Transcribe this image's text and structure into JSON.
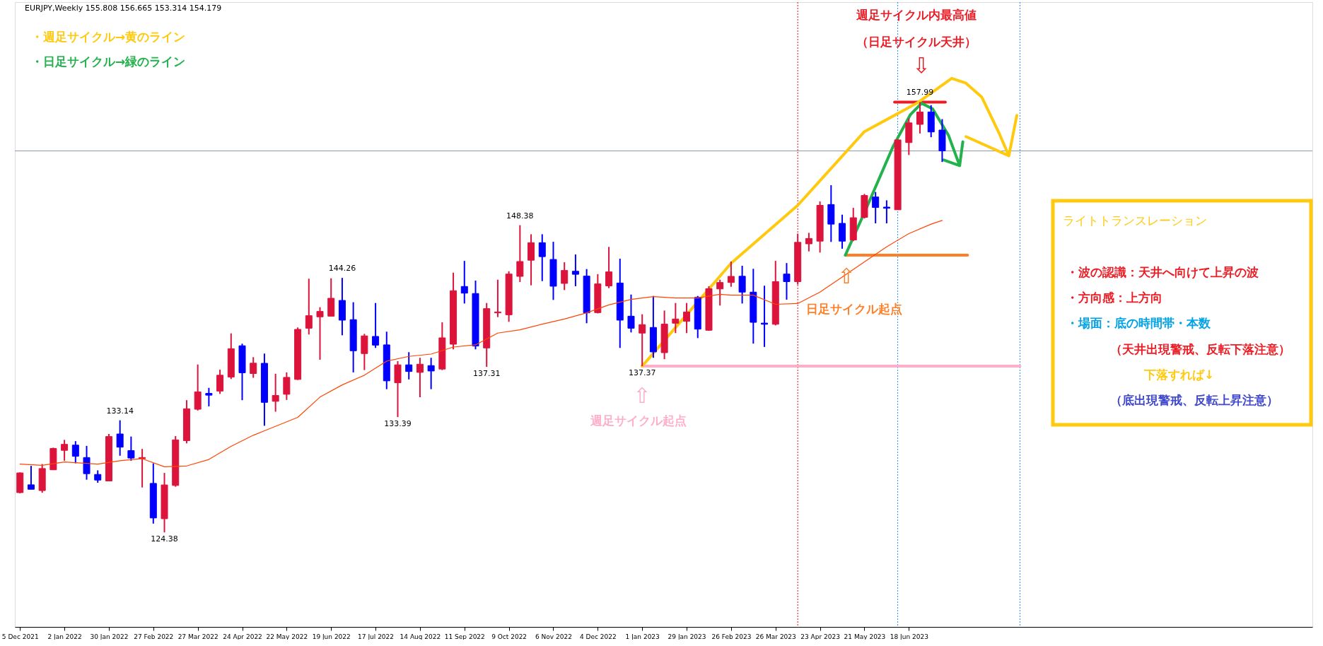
{
  "chart_data": {
    "type": "candlestick",
    "title": "EURJPY,Weekly  155.808 156.665 153.314 154.179",
    "x": [
      "2021-12-05",
      "2021-12-12",
      "2021-12-19",
      "2021-12-26",
      "2022-01-02",
      "2022-01-09",
      "2022-01-16",
      "2022-01-23",
      "2022-01-30",
      "2022-02-06",
      "2022-02-13",
      "2022-02-20",
      "2022-02-27",
      "2022-03-06",
      "2022-03-13",
      "2022-03-20",
      "2022-03-27",
      "2022-04-03",
      "2022-04-10",
      "2022-04-17",
      "2022-04-24",
      "2022-05-01",
      "2022-05-08",
      "2022-05-15",
      "2022-05-22",
      "2022-05-29",
      "2022-06-05",
      "2022-06-12",
      "2022-06-19",
      "2022-06-26",
      "2022-07-03",
      "2022-07-10",
      "2022-07-17",
      "2022-07-24",
      "2022-07-31",
      "2022-08-07",
      "2022-08-14",
      "2022-08-21",
      "2022-08-28",
      "2022-09-04",
      "2022-09-11",
      "2022-09-18",
      "2022-09-25",
      "2022-10-02",
      "2022-10-09",
      "2022-10-16",
      "2022-10-23",
      "2022-10-30",
      "2022-11-06",
      "2022-11-13",
      "2022-11-20",
      "2022-11-27",
      "2022-12-04",
      "2022-12-11",
      "2022-12-18",
      "2022-12-25",
      "2023-01-01",
      "2023-01-08",
      "2023-01-15",
      "2023-01-22",
      "2023-01-29",
      "2023-02-05",
      "2023-02-12",
      "2023-02-19",
      "2023-02-26",
      "2023-03-05",
      "2023-03-12",
      "2023-03-19",
      "2023-03-26",
      "2023-04-02",
      "2023-04-09",
      "2023-04-16",
      "2023-04-23",
      "2023-04-30",
      "2023-05-07",
      "2023-05-14",
      "2023-05-21",
      "2023-05-28",
      "2023-06-04",
      "2023-06-11",
      "2023-06-18",
      "2023-06-25",
      "2023-07-02",
      "2023-07-09"
    ],
    "ohlc": [
      [
        127.49,
        129.07,
        127.44,
        129.03
      ],
      [
        128.1,
        129.58,
        127.75,
        127.75
      ],
      [
        127.65,
        129.72,
        127.48,
        129.37
      ],
      [
        129.27,
        131.0,
        129.27,
        130.94
      ],
      [
        130.79,
        131.61,
        129.98,
        131.26
      ],
      [
        131.2,
        131.51,
        129.78,
        130.33
      ],
      [
        130.23,
        131.14,
        128.5,
        128.97
      ],
      [
        128.91,
        129.23,
        128.26,
        128.47
      ],
      [
        128.4,
        132.07,
        128.4,
        131.87
      ],
      [
        132.07,
        133.14,
        130.37,
        131.04
      ],
      [
        130.77,
        131.87,
        129.98,
        130.19
      ],
      [
        130.14,
        130.9,
        127.89,
        130.23
      ],
      [
        128.21,
        129.78,
        125.07,
        125.51
      ],
      [
        125.45,
        129.03,
        124.38,
        128.09
      ],
      [
        128.05,
        131.91,
        127.95,
        131.61
      ],
      [
        131.55,
        134.71,
        131.34,
        134.04
      ],
      [
        134.0,
        137.5,
        133.9,
        135.36
      ],
      [
        135.24,
        135.67,
        134.23,
        135.1
      ],
      [
        135.42,
        137.09,
        135.2,
        136.66
      ],
      [
        136.52,
        139.93,
        136.36,
        138.73
      ],
      [
        138.96,
        139.12,
        134.71,
        136.85
      ],
      [
        136.79,
        138.07,
        136.46,
        137.6
      ],
      [
        137.59,
        138.35,
        132.71,
        134.54
      ],
      [
        134.62,
        136.77,
        133.81,
        135.08
      ],
      [
        135.17,
        136.88,
        134.73,
        136.49
      ],
      [
        136.33,
        140.39,
        136.29,
        140.24
      ],
      [
        140.33,
        144.2,
        139.84,
        141.31
      ],
      [
        141.22,
        141.97,
        137.87,
        141.64
      ],
      [
        141.27,
        144.23,
        141.27,
        142.67
      ],
      [
        142.5,
        144.26,
        139.78,
        140.96
      ],
      [
        141.0,
        142.36,
        136.88,
        138.57
      ],
      [
        138.35,
        139.89,
        137.06,
        139.73
      ],
      [
        139.69,
        142.3,
        138.79,
        139.01
      ],
      [
        139.03,
        140.06,
        135.57,
        136.22
      ],
      [
        136.07,
        137.76,
        133.39,
        137.47
      ],
      [
        137.47,
        138.46,
        136.33,
        136.95
      ],
      [
        136.88,
        138.02,
        134.94,
        137.52
      ],
      [
        137.41,
        138.02,
        135.57,
        136.99
      ],
      [
        137.14,
        140.79,
        137.06,
        139.58
      ],
      [
        139.08,
        144.67,
        138.68,
        143.26
      ],
      [
        143.59,
        145.59,
        142.26,
        143.07
      ],
      [
        143.04,
        144.05,
        138.68,
        138.94
      ],
      [
        138.79,
        142.3,
        137.31,
        141.86
      ],
      [
        141.53,
        144.12,
        141.2,
        141.6
      ],
      [
        141.38,
        144.78,
        140.83,
        144.56
      ],
      [
        144.38,
        148.38,
        143.94,
        145.54
      ],
      [
        145.64,
        147.67,
        143.68,
        147.01
      ],
      [
        147.01,
        147.67,
        144.01,
        145.92
      ],
      [
        145.7,
        147.08,
        142.54,
        143.61
      ],
      [
        143.83,
        145.48,
        143.31,
        144.84
      ],
      [
        144.78,
        146.09,
        143.61,
        144.54
      ],
      [
        144.4,
        144.95,
        140.72,
        141.53
      ],
      [
        141.55,
        144.56,
        141.49,
        143.79
      ],
      [
        143.64,
        146.68,
        143.46,
        144.73
      ],
      [
        143.86,
        145.76,
        138.79,
        140.96
      ],
      [
        141.27,
        142.96,
        140.0,
        140.33
      ],
      [
        139.95,
        141.42,
        137.37,
        140.61
      ],
      [
        140.39,
        142.85,
        138.02,
        138.48
      ],
      [
        138.42,
        141.71,
        137.91,
        140.65
      ],
      [
        140.72,
        142.3,
        139.95,
        141.05
      ],
      [
        140.87,
        142.3,
        139.95,
        141.6
      ],
      [
        142.74,
        142.85,
        139.56,
        140.26
      ],
      [
        140.17,
        143.61,
        140.13,
        143.42
      ],
      [
        143.4,
        144.12,
        142.1,
        143.9
      ],
      [
        143.9,
        145.54,
        143.57,
        144.38
      ],
      [
        144.39,
        145.21,
        142.26,
        143.15
      ],
      [
        143.15,
        144.97,
        139.13,
        140.79
      ],
      [
        140.73,
        143.65,
        138.87,
        140.64
      ],
      [
        140.64,
        145.59,
        140.55,
        143.97
      ],
      [
        144.56,
        145.42,
        142.56,
        143.97
      ],
      [
        143.97,
        147.72,
        143.74,
        147.04
      ],
      [
        146.92,
        147.78,
        146.33,
        147.34
      ],
      [
        147.13,
        150.23,
        146.24,
        149.93
      ],
      [
        149.99,
        151.5,
        147.07,
        148.46
      ],
      [
        148.52,
        149.2,
        146.54,
        147.13
      ],
      [
        147.22,
        149.73,
        147.13,
        148.96
      ],
      [
        148.99,
        150.82,
        148.9,
        150.7
      ],
      [
        150.58,
        150.97,
        148.52,
        149.76
      ],
      [
        149.79,
        150.32,
        148.52,
        149.7
      ],
      [
        149.58,
        155.1,
        149.58,
        155.04
      ],
      [
        154.83,
        156.72,
        153.86,
        156.37
      ],
      [
        156.25,
        157.99,
        155.54,
        157.22
      ],
      [
        157.22,
        157.75,
        155.25,
        155.66
      ],
      [
        155.808,
        156.665,
        153.314,
        154.179
      ]
    ],
    "colors": [
      "#dc143c",
      "#0000ff",
      "#dc143c",
      "#dc143c",
      "#dc143c",
      "#0000ff",
      "#0000ff",
      "#0000ff",
      "#dc143c",
      "#0000ff",
      "#0000ff",
      "#dc143c",
      "#0000ff",
      "#dc143c",
      "#dc143c",
      "#dc143c",
      "#dc143c",
      "#0000ff",
      "#dc143c",
      "#dc143c",
      "#0000ff",
      "#dc143c",
      "#0000ff",
      "#dc143c",
      "#dc143c",
      "#dc143c",
      "#dc143c",
      "#dc143c",
      "#dc143c",
      "#0000ff",
      "#0000ff",
      "#dc143c",
      "#0000ff",
      "#0000ff",
      "#dc143c",
      "#0000ff",
      "#dc143c",
      "#0000ff",
      "#dc143c",
      "#dc143c",
      "#0000ff",
      "#0000ff",
      "#dc143c",
      "#dc143c",
      "#dc143c",
      "#dc143c",
      "#dc143c",
      "#0000ff",
      "#0000ff",
      "#dc143c",
      "#0000ff",
      "#0000ff",
      "#dc143c",
      "#dc143c",
      "#0000ff",
      "#0000ff",
      "#dc143c",
      "#0000ff",
      "#dc143c",
      "#dc143c",
      "#dc143c",
      "#0000ff",
      "#dc143c",
      "#dc143c",
      "#dc143c",
      "#0000ff",
      "#0000ff",
      "#0000ff",
      "#dc143c",
      "#0000ff",
      "#dc143c",
      "#dc143c",
      "#dc143c",
      "#0000ff",
      "#0000ff",
      "#dc143c",
      "#dc143c",
      "#0000ff",
      "#0000ff",
      "#dc143c",
      "#dc143c",
      "#dc143c",
      "#0000ff",
      "#0000ff"
    ],
    "series": [
      {
        "type": "line",
        "color": "#ff4500",
        "x": [
          "2021-12-05",
          "2021-12-19",
          "2022-01-02",
          "2022-01-23",
          "2022-02-06",
          "2022-02-20",
          "2022-03-06",
          "2022-03-20",
          "2022-04-03",
          "2022-04-17",
          "2022-05-01",
          "2022-05-08",
          "2022-05-29",
          "2022-06-12",
          "2022-06-26",
          "2022-07-10",
          "2022-07-24",
          "2022-08-07",
          "2022-08-21",
          "2022-09-04",
          "2022-09-18",
          "2022-10-02",
          "2022-10-16",
          "2022-10-30",
          "2022-11-13",
          "2022-11-27",
          "2022-12-11",
          "2022-12-25",
          "2023-01-08",
          "2023-01-22",
          "2023-02-05",
          "2023-02-19",
          "2023-02-26",
          "2023-03-12",
          "2023-03-26",
          "2023-04-09",
          "2023-04-23",
          "2023-05-07",
          "2023-05-21",
          "2023-06-04",
          "2023-06-18",
          "2023-07-02",
          "2023-07-09"
        ],
        "values": [
          129.72,
          129.62,
          129.88,
          129.72,
          129.98,
          130.14,
          129.51,
          129.57,
          130.08,
          131.1,
          131.97,
          132.32,
          133.37,
          134.95,
          135.9,
          136.66,
          137.76,
          138.13,
          138.31,
          138.86,
          139.03,
          139.95,
          140.21,
          140.65,
          141.05,
          141.53,
          142.15,
          142.58,
          142.8,
          142.69,
          142.69,
          142.98,
          142.91,
          142.91,
          142.2,
          142.26,
          143.15,
          144.33,
          145.51,
          146.69,
          147.72,
          148.46,
          148.75
        ]
      },
      {
        "type": "line",
        "color": "#ffaec9",
        "x": [
          "2023-01-01",
          "2023-08-27"
        ],
        "values": [
          137.37,
          137.37
        ]
      },
      {
        "type": "line",
        "color": "#ed1c24",
        "x": [
          "2023-06-09",
          "2023-07-11"
        ],
        "values": [
          157.99,
          157.99
        ]
      },
      {
        "type": "line",
        "color": "#ff7f27",
        "x": [
          "2023-05-09",
          "2023-07-25"
        ],
        "values": [
          146.04,
          146.04
        ]
      },
      {
        "type": "line",
        "color": "#ffc90e",
        "x": [
          "2023-01-01",
          "2023-02-26",
          "2023-04-09",
          "2023-05-21",
          "2023-06-23",
          "2023-07-15",
          "2023-07-24",
          "2023-08-03",
          "2023-08-14",
          "2023-08-20",
          "2023-08-25",
          "2023-08-20",
          "2023-07-24"
        ],
        "values": [
          137.37,
          145.4,
          149.93,
          155.69,
          157.9,
          159.85,
          159.47,
          158.37,
          155.52,
          153.8,
          156.95,
          153.8,
          155.3
        ]
      },
      {
        "type": "line",
        "color": "#22b14c",
        "x": [
          "2023-05-09",
          "2023-05-22",
          "2023-06-08",
          "2023-06-19",
          "2023-06-26",
          "2023-07-03",
          "2023-07-13",
          "2023-07-20",
          "2023-07-10",
          "2023-07-20",
          "2023-07-22"
        ],
        "values": [
          146.04,
          149.64,
          154.51,
          157.02,
          157.9,
          157.46,
          155.39,
          153.03,
          153.47,
          153.03,
          154.89
        ]
      }
    ],
    "xlim": [
      "2021-12-04",
      "2024-02-25"
    ],
    "xticks": [
      {
        "value": "2021-12-05",
        "label": "5 Dec 2021"
      },
      {
        "value": "2022-01-02",
        "label": "2 Jan 2022"
      },
      {
        "value": "2022-01-30",
        "label": "30 Jan 2022"
      },
      {
        "value": "2022-02-27",
        "label": "27 Feb 2022"
      },
      {
        "value": "2022-03-27",
        "label": "27 Mar 2022"
      },
      {
        "value": "2022-04-24",
        "label": "24 Apr 2022"
      },
      {
        "value": "2022-05-22",
        "label": "22 May 2022"
      },
      {
        "value": "2022-06-19",
        "label": "19 Jun 2022"
      },
      {
        "value": "2022-07-17",
        "label": "17 Jul 2022"
      },
      {
        "value": "2022-08-14",
        "label": "14 Aug 2022"
      },
      {
        "value": "2022-09-11",
        "label": "11 Sep 2022"
      },
      {
        "value": "2022-10-09",
        "label": "9 Oct 2022"
      },
      {
        "value": "2022-11-06",
        "label": "6 Nov 2022"
      },
      {
        "value": "2022-12-04",
        "label": "4 Dec 2022"
      },
      {
        "value": "2023-01-01",
        "label": "1 Jan 2023"
      },
      {
        "value": "2023-01-29",
        "label": "29 Jan 2023"
      },
      {
        "value": "2023-02-26",
        "label": "26 Feb 2023"
      },
      {
        "value": "2023-03-26",
        "label": "26 Mar 2023"
      },
      {
        "value": "2023-04-23",
        "label": "23 Apr 2023"
      },
      {
        "value": "2023-05-21",
        "label": "21 May 2023"
      },
      {
        "value": "2023-06-18",
        "label": "18 Jun 2023"
      }
    ],
    "ylim": [
      117.0,
      165.8
    ],
    "tick_labels": "x",
    "ref_lines": [
      {
        "axis": "y",
        "value": 154.179,
        "color": "#8c9bb0"
      },
      {
        "axis": "x",
        "value": "2023-04-09",
        "color": "#ff0000",
        "line_style": "dotted"
      },
      {
        "axis": "x",
        "value": "2023-06-11",
        "color": "#1e90ff",
        "line_style": "dotted"
      },
      {
        "axis": "x",
        "value": "2023-08-27",
        "color": "#1e90ff",
        "line_style": "dotted"
      }
    ],
    "annotations": [
      "・週足サイクル→黄のライン",
      "・日足サイクル→緑のライン",
      "週足サイクル内最高値",
      "（日足サイクル天井）",
      "⇩",
      {
        "text": "133.14",
        "x": "2022-02-06",
        "y": 133.14
      },
      {
        "text": "124.38",
        "x": "2022-03-06",
        "y": 124.38
      },
      {
        "text": "144.26",
        "x": "2022-06-26",
        "y": 144.26
      },
      {
        "text": "133.39",
        "x": "2022-07-31",
        "y": 133.39
      },
      {
        "text": "137.31",
        "x": "2022-09-25",
        "y": 137.31
      },
      {
        "text": "148.38",
        "x": "2022-10-16",
        "y": 148.38
      },
      {
        "text": "137.37",
        "x": "2023-01-01",
        "y": 137.37
      },
      {
        "text": "157.99",
        "x": "2023-06-25",
        "y": 157.99
      },
      "⇧",
      "週足サイクル起点",
      "⇧",
      "日足サイクル起点",
      "ライトトランスレーション",
      "・波の認識：天井へ向けて上昇の波",
      "・方向感：上方向",
      "・場面：底の時間帯・本数",
      "（天井出現警戒、反転下落注意）",
      "下落すれば↓",
      "（底出現警戒、反転上昇注意）"
    ]
  }
}
